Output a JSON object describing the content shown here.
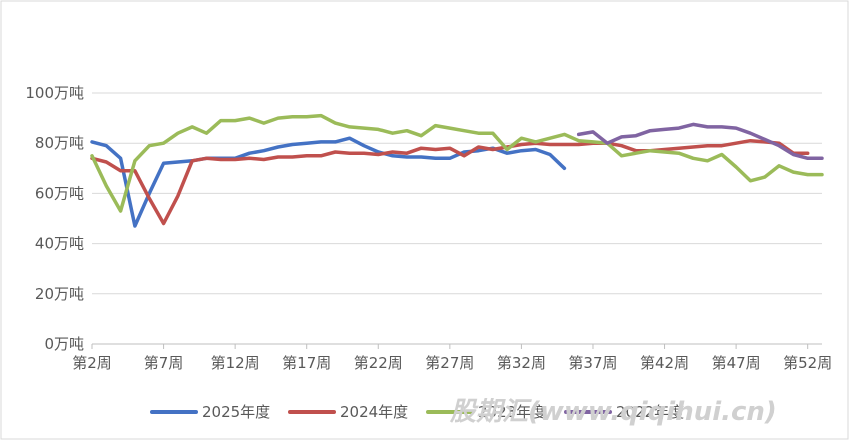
{
  "watermark": "股期汇(www.qiqihui.cn)",
  "chart_data": {
    "type": "line",
    "title": "",
    "xlabel": "",
    "ylabel": "",
    "ylim": [
      0,
      100
    ],
    "yticks": [
      0,
      20,
      40,
      60,
      80,
      100
    ],
    "ytick_labels": [
      "0万吨",
      "20万吨",
      "40万吨",
      "60万吨",
      "80万吨",
      "100万吨"
    ],
    "xlim": [
      2,
      53
    ],
    "xtick_values": [
      2,
      7,
      12,
      17,
      22,
      27,
      32,
      37,
      42,
      47,
      52
    ],
    "xtick_labels": [
      "第2周",
      "第7周",
      "第12周",
      "第17周",
      "第22周",
      "第27周",
      "第32周",
      "第37周",
      "第42周",
      "第47周",
      "第52周"
    ],
    "grid": "horizontal",
    "legend": "bottom",
    "series": [
      {
        "name": "2025年度",
        "color": "#4472c4",
        "x": [
          2,
          3,
          4,
          5,
          6,
          7,
          8,
          9,
          10,
          11,
          12,
          13,
          14,
          15,
          16,
          17,
          18,
          19,
          20,
          21,
          22,
          23,
          24,
          25,
          26,
          27,
          28,
          29,
          30,
          31,
          32,
          33,
          34,
          35,
          36
        ],
        "values": [
          80.5,
          79,
          74,
          47,
          60,
          72,
          72.5,
          73,
          74,
          74,
          74,
          76,
          77,
          78.5,
          79.5,
          80,
          80.5,
          80.5,
          82,
          79,
          76.5,
          75,
          74.5,
          74.5,
          74,
          74,
          76.5,
          77,
          78,
          76,
          77,
          77.5,
          75.5,
          70,
          null
        ]
      },
      {
        "name": "2024年度",
        "color": "#c0504d",
        "x": [
          2,
          3,
          4,
          5,
          6,
          7,
          8,
          9,
          10,
          11,
          12,
          13,
          14,
          15,
          16,
          17,
          18,
          19,
          20,
          21,
          22,
          23,
          24,
          25,
          26,
          27,
          28,
          29,
          30,
          31,
          32,
          33,
          34,
          35,
          36,
          37,
          38,
          39,
          40,
          41,
          42,
          43,
          44,
          45,
          46,
          47,
          48,
          49,
          50,
          51,
          52,
          53
        ],
        "values": [
          74,
          72.5,
          69,
          69,
          58,
          48,
          59,
          73,
          74,
          73.5,
          73.5,
          74,
          73.5,
          74.5,
          74.5,
          75,
          75,
          76.5,
          76,
          76,
          75.5,
          76.5,
          76,
          78,
          77.5,
          78,
          75,
          78.5,
          77.5,
          78.5,
          79.5,
          80,
          79.5,
          79.5,
          79.5,
          80,
          80,
          79,
          77,
          77,
          77.5,
          78,
          78.5,
          79,
          79,
          80,
          81,
          80.5,
          80,
          76,
          76,
          null
        ]
      },
      {
        "name": "2023年度",
        "color": "#9bbb59",
        "x": [
          2,
          3,
          4,
          5,
          6,
          7,
          8,
          9,
          10,
          11,
          12,
          13,
          14,
          15,
          16,
          17,
          18,
          19,
          20,
          21,
          22,
          23,
          24,
          25,
          26,
          27,
          28,
          29,
          30,
          31,
          32,
          33,
          34,
          35,
          36,
          37,
          38,
          39,
          40,
          41,
          42,
          43,
          44,
          45,
          46,
          47,
          48,
          49,
          50,
          51,
          52,
          53
        ],
        "values": [
          75,
          63,
          53,
          73,
          79,
          80,
          84,
          86.5,
          84,
          89,
          89,
          90,
          88,
          90,
          90.5,
          90.5,
          91,
          88,
          86.5,
          86,
          85.5,
          84,
          85,
          83,
          87,
          86,
          85,
          84,
          84,
          77.5,
          82,
          80.5,
          82,
          83.5,
          81,
          80.5,
          80,
          75,
          76,
          77,
          76.5,
          76,
          74,
          73,
          75.5,
          70.5,
          65,
          66.5,
          71,
          68.5,
          67.5,
          67.5
        ]
      },
      {
        "name": "2022年度",
        "color": "#8064a2",
        "x": [
          36,
          37,
          38,
          39,
          40,
          41,
          42,
          43,
          44,
          45,
          46,
          47,
          48,
          49,
          50,
          51,
          52,
          53
        ],
        "values": [
          83.5,
          84.5,
          80,
          82.5,
          83,
          85,
          85.5,
          86,
          87.5,
          86.5,
          86.5,
          86,
          84,
          81.5,
          79,
          75.5,
          74,
          74
        ]
      }
    ]
  }
}
